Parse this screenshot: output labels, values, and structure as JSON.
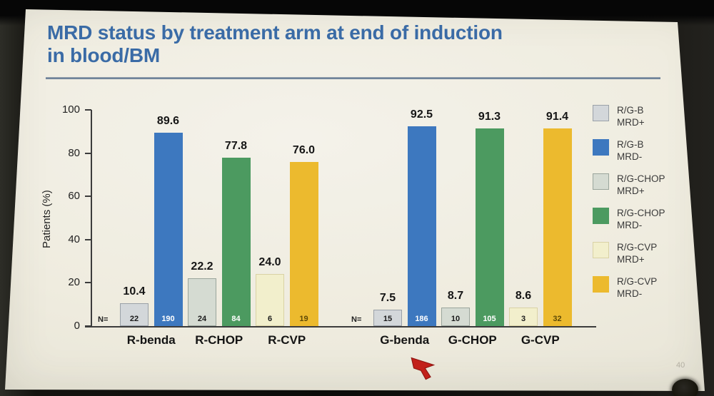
{
  "slide": {
    "title_line1": "MRD status by treatment arm at end of induction",
    "title_line2": "in blood/BM",
    "page_hint": "40"
  },
  "chart_data": {
    "type": "bar",
    "title": "MRD status by treatment arm at end of induction in blood/BM",
    "xlabel": "",
    "ylabel": "Patients (%)",
    "ylim": [
      0,
      100
    ],
    "yticks": [
      0,
      20,
      40,
      60,
      80,
      100
    ],
    "grid": false,
    "legend_position": "right",
    "n_prefix": "N=",
    "series_styles": {
      "R/G-B MRD+": {
        "fill": "#d3d7da",
        "border": "#9aa1a8",
        "hatched": true,
        "n_color": "#1a1a1a"
      },
      "R/G-B MRD-": {
        "fill": "#3d78bf",
        "border": null,
        "hatched": false,
        "n_color": "#ffffff"
      },
      "R/G-CHOP MRD+": {
        "fill": "#d5dbd2",
        "border": "#9aa59c",
        "hatched": true,
        "n_color": "#1a1a1a"
      },
      "R/G-CHOP MRD-": {
        "fill": "#4c9a60",
        "border": null,
        "hatched": false,
        "n_color": "#ffffff"
      },
      "R/G-CVP MRD+": {
        "fill": "#f2efcc",
        "border": "#d9d2a5",
        "hatched": true,
        "n_color": "#1a1a1a"
      },
      "R/G-CVP MRD-": {
        "fill": "#ecba2e",
        "border": null,
        "hatched": false,
        "n_color": "#5f4a06"
      }
    },
    "groups": [
      {
        "arm": "R-benda",
        "bars": [
          {
            "series": "R/G-B MRD+",
            "pct": 10.4,
            "pct_label": "10.4",
            "n": "22"
          },
          {
            "series": "R/G-B MRD-",
            "pct": 89.6,
            "pct_label": "89.6",
            "n": "190"
          }
        ]
      },
      {
        "arm": "R-CHOP",
        "bars": [
          {
            "series": "R/G-CHOP MRD+",
            "pct": 22.2,
            "pct_label": "22.2",
            "n": "24"
          },
          {
            "series": "R/G-CHOP MRD-",
            "pct": 77.8,
            "pct_label": "77.8",
            "n": "84"
          }
        ]
      },
      {
        "arm": "R-CVP",
        "bars": [
          {
            "series": "R/G-CVP MRD+",
            "pct": 24.0,
            "pct_label": "24.0",
            "n": "6"
          },
          {
            "series": "R/G-CVP MRD-",
            "pct": 76.0,
            "pct_label": "76.0",
            "n": "19"
          }
        ]
      },
      {
        "arm": "G-benda",
        "bars": [
          {
            "series": "R/G-B MRD+",
            "pct": 7.5,
            "pct_label": "7.5",
            "n": "15"
          },
          {
            "series": "R/G-B MRD-",
            "pct": 92.5,
            "pct_label": "92.5",
            "n": "186"
          }
        ]
      },
      {
        "arm": "G-CHOP",
        "bars": [
          {
            "series": "R/G-CHOP MRD+",
            "pct": 8.7,
            "pct_label": "8.7",
            "n": "10"
          },
          {
            "series": "R/G-CHOP MRD-",
            "pct": 91.3,
            "pct_label": "91.3",
            "n": "105"
          }
        ]
      },
      {
        "arm": "G-CVP",
        "bars": [
          {
            "series": "R/G-CVP MRD+",
            "pct": 8.6,
            "pct_label": "8.6",
            "n": "3"
          },
          {
            "series": "R/G-CVP MRD-",
            "pct": 91.4,
            "pct_label": "91.4",
            "n": "32"
          }
        ]
      }
    ],
    "legend": [
      {
        "series": "R/G-B MRD+",
        "line1": "R/G-B",
        "line2": "MRD+"
      },
      {
        "series": "R/G-B MRD-",
        "line1": "R/G-B",
        "line2": "MRD-"
      },
      {
        "series": "R/G-CHOP MRD+",
        "line1": "R/G-CHOP",
        "line2": "MRD+"
      },
      {
        "series": "R/G-CHOP MRD-",
        "line1": "R/G-CHOP",
        "line2": "MRD-"
      },
      {
        "series": "R/G-CVP MRD+",
        "line1": "R/G-CVP",
        "line2": "MRD+"
      },
      {
        "series": "R/G-CVP MRD-",
        "line1": "R/G-CVP",
        "line2": "MRD-"
      }
    ]
  },
  "overlay": {
    "cursor": "red-arrow-pointer",
    "cursor_color": "#c2201a",
    "cursor_outline": "#8e1410"
  }
}
